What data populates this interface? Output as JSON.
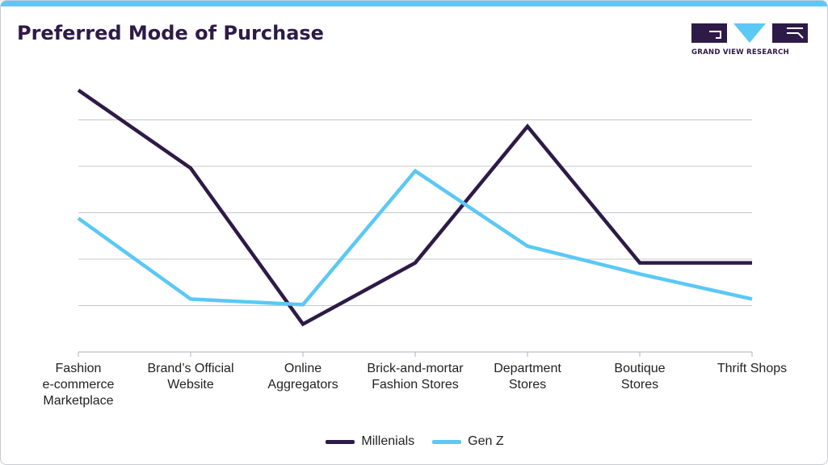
{
  "header": {
    "title": "Preferred Mode of Purchase",
    "title_color": "#2e1a47"
  },
  "brand": {
    "name": "GRAND VIEW RESEARCH",
    "logo_icon": "gvr-logo-icon",
    "primary_color": "#2e1a47",
    "accent_color": "#5bc8f5"
  },
  "chart_data": {
    "type": "line",
    "title": "Preferred Mode of Purchase",
    "xlabel": "",
    "ylabel": "",
    "ylim": [
      0,
      100
    ],
    "grid": true,
    "categories": [
      [
        "Fashion",
        "e-commerce",
        "Marketplace"
      ],
      [
        "Brand’s Official",
        "Website"
      ],
      [
        "Online",
        "Aggregators"
      ],
      [
        "Brick-and-mortar",
        "Fashion Stores"
      ],
      [
        "Department",
        "Stores"
      ],
      [
        "Boutique",
        "Stores"
      ],
      [
        "Thrift Shops"
      ]
    ],
    "series": [
      {
        "name": "Millenials",
        "color": "#2e1a47",
        "values": [
          94,
          66,
          10,
          32,
          81,
          32,
          32
        ]
      },
      {
        "name": "Gen Z",
        "color": "#5bc8f5",
        "values": [
          48,
          19,
          17,
          65,
          38,
          28,
          19
        ]
      }
    ],
    "legend_position": "bottom-center"
  }
}
